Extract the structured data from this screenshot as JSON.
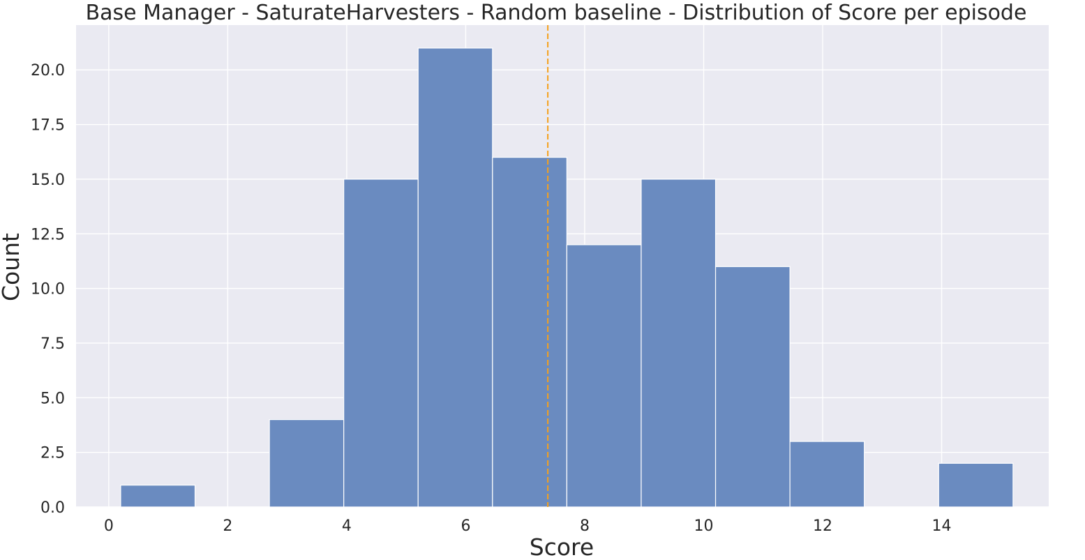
{
  "chart_data": {
    "type": "bar",
    "title": "Base Manager - SaturateHarvesters - Random baseline - Distribution of Score per episode",
    "xlabel": "Score",
    "ylabel": "Count",
    "xlim": [
      -0.55,
      15.8
    ],
    "ylim": [
      0,
      22.05
    ],
    "xticks": [
      0,
      2,
      4,
      6,
      8,
      10,
      12,
      14
    ],
    "yticks": [
      0.0,
      2.5,
      5.0,
      7.5,
      10.0,
      12.5,
      15.0,
      17.5,
      20.0
    ],
    "ytick_labels": [
      "0.0",
      "2.5",
      "5.0",
      "7.5",
      "10.0",
      "12.5",
      "15.0",
      "17.5",
      "20.0"
    ],
    "bins": [
      {
        "x0": 0.2,
        "x1": 1.45,
        "count": 1
      },
      {
        "x0": 1.45,
        "x1": 2.7,
        "count": 0
      },
      {
        "x0": 2.7,
        "x1": 3.95,
        "count": 4
      },
      {
        "x0": 3.95,
        "x1": 5.2,
        "count": 15
      },
      {
        "x0": 5.2,
        "x1": 6.45,
        "count": 21
      },
      {
        "x0": 6.45,
        "x1": 7.7,
        "count": 16
      },
      {
        "x0": 7.7,
        "x1": 8.95,
        "count": 12
      },
      {
        "x0": 8.95,
        "x1": 10.2,
        "count": 15
      },
      {
        "x0": 10.2,
        "x1": 11.45,
        "count": 11
      },
      {
        "x0": 11.45,
        "x1": 12.7,
        "count": 3
      },
      {
        "x0": 12.7,
        "x1": 13.95,
        "count": 0
      },
      {
        "x0": 13.95,
        "x1": 15.2,
        "count": 2
      }
    ],
    "reference_line": {
      "x": 7.38,
      "style": "dashed"
    },
    "grid": true,
    "colors": {
      "bar": "#6a8bc0",
      "bar_edge": "#ffffff",
      "background": "#eaeaf2",
      "grid": "#ffffff",
      "reference_line": "#f5a01c"
    }
  }
}
